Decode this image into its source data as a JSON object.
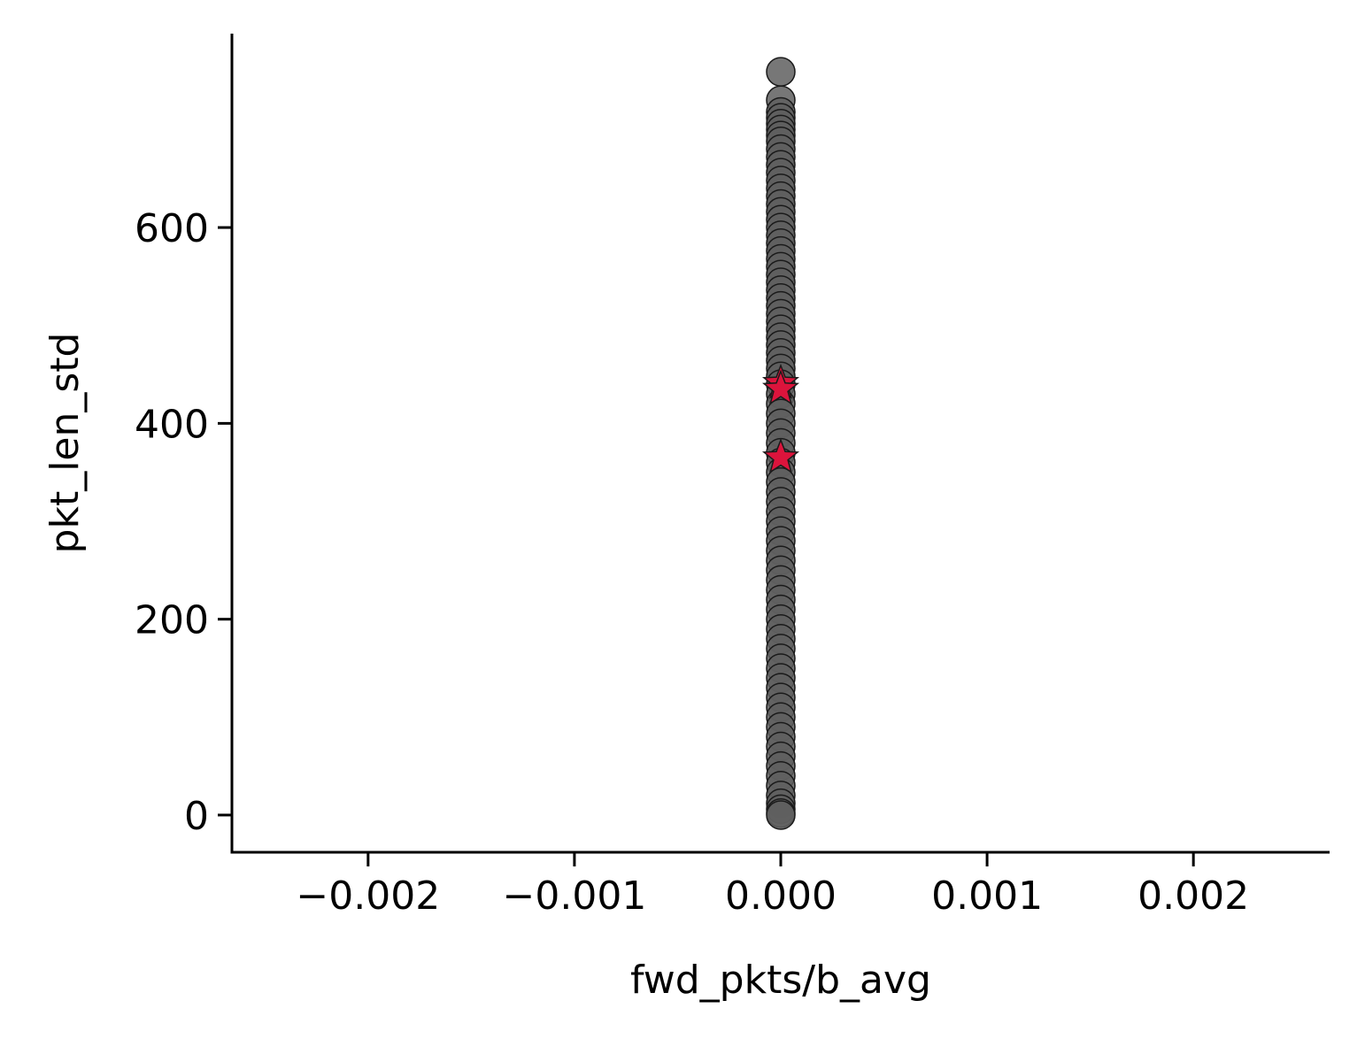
{
  "chart_data": {
    "type": "scatter",
    "title": "",
    "xlabel": "fwd_pkts/b_avg",
    "ylabel": "pkt_len_std",
    "xlim": [
      -0.00266,
      0.00266
    ],
    "ylim": [
      -38,
      798
    ],
    "xticks": [
      {
        "value": -0.002,
        "label": "−0.002"
      },
      {
        "value": -0.001,
        "label": "−0.001"
      },
      {
        "value": 0.0,
        "label": "0.000"
      },
      {
        "value": 0.001,
        "label": "0.001"
      },
      {
        "value": 0.002,
        "label": "0.002"
      }
    ],
    "yticks": [
      {
        "value": 0,
        "label": "0"
      },
      {
        "value": 200,
        "label": "200"
      },
      {
        "value": 400,
        "label": "400"
      },
      {
        "value": 600,
        "label": "600"
      }
    ],
    "grid": false,
    "series": [
      {
        "marker": "circle",
        "color": "#5f5f5f",
        "edgecolor": "#1a1a1a",
        "points": [
          {
            "x": 0,
            "y": 759
          },
          {
            "x": 0,
            "y": 730
          },
          {
            "x": 0,
            "y": 718
          },
          {
            "x": 0,
            "y": 712
          },
          {
            "x": 0,
            "y": 706
          },
          {
            "x": 0,
            "y": 700
          },
          {
            "x": 0,
            "y": 694
          },
          {
            "x": 0,
            "y": 688
          },
          {
            "x": 0,
            "y": 680
          },
          {
            "x": 0,
            "y": 672
          },
          {
            "x": 0,
            "y": 664
          },
          {
            "x": 0,
            "y": 656
          },
          {
            "x": 0,
            "y": 648
          },
          {
            "x": 0,
            "y": 640
          },
          {
            "x": 0,
            "y": 632
          },
          {
            "x": 0,
            "y": 624
          },
          {
            "x": 0,
            "y": 616
          },
          {
            "x": 0,
            "y": 608
          },
          {
            "x": 0,
            "y": 600
          },
          {
            "x": 0,
            "y": 592
          },
          {
            "x": 0,
            "y": 584
          },
          {
            "x": 0,
            "y": 576
          },
          {
            "x": 0,
            "y": 568
          },
          {
            "x": 0,
            "y": 560
          },
          {
            "x": 0,
            "y": 552
          },
          {
            "x": 0,
            "y": 544
          },
          {
            "x": 0,
            "y": 536
          },
          {
            "x": 0,
            "y": 528
          },
          {
            "x": 0,
            "y": 520
          },
          {
            "x": 0,
            "y": 512
          },
          {
            "x": 0,
            "y": 504
          },
          {
            "x": 0,
            "y": 496
          },
          {
            "x": 0,
            "y": 488
          },
          {
            "x": 0,
            "y": 480
          },
          {
            "x": 0,
            "y": 472
          },
          {
            "x": 0,
            "y": 464
          },
          {
            "x": 0,
            "y": 456
          },
          {
            "x": 0,
            "y": 448
          },
          {
            "x": 0,
            "y": 440
          },
          {
            "x": 0,
            "y": 430
          },
          {
            "x": 0,
            "y": 420
          },
          {
            "x": 0,
            "y": 410
          },
          {
            "x": 0,
            "y": 400
          },
          {
            "x": 0,
            "y": 390
          },
          {
            "x": 0,
            "y": 380
          },
          {
            "x": 0,
            "y": 370
          },
          {
            "x": 0,
            "y": 360
          },
          {
            "x": 0,
            "y": 350
          },
          {
            "x": 0,
            "y": 340
          },
          {
            "x": 0,
            "y": 330
          },
          {
            "x": 0,
            "y": 320
          },
          {
            "x": 0,
            "y": 310
          },
          {
            "x": 0,
            "y": 300
          },
          {
            "x": 0,
            "y": 290
          },
          {
            "x": 0,
            "y": 280
          },
          {
            "x": 0,
            "y": 270
          },
          {
            "x": 0,
            "y": 260
          },
          {
            "x": 0,
            "y": 250
          },
          {
            "x": 0,
            "y": 240
          },
          {
            "x": 0,
            "y": 230
          },
          {
            "x": 0,
            "y": 220
          },
          {
            "x": 0,
            "y": 210
          },
          {
            "x": 0,
            "y": 200
          },
          {
            "x": 0,
            "y": 190
          },
          {
            "x": 0,
            "y": 180
          },
          {
            "x": 0,
            "y": 170
          },
          {
            "x": 0,
            "y": 160
          },
          {
            "x": 0,
            "y": 150
          },
          {
            "x": 0,
            "y": 140
          },
          {
            "x": 0,
            "y": 130
          },
          {
            "x": 0,
            "y": 120
          },
          {
            "x": 0,
            "y": 110
          },
          {
            "x": 0,
            "y": 100
          },
          {
            "x": 0,
            "y": 90
          },
          {
            "x": 0,
            "y": 80
          },
          {
            "x": 0,
            "y": 70
          },
          {
            "x": 0,
            "y": 60
          },
          {
            "x": 0,
            "y": 50
          },
          {
            "x": 0,
            "y": 40
          },
          {
            "x": 0,
            "y": 30
          },
          {
            "x": 0,
            "y": 20
          },
          {
            "x": 0,
            "y": 12
          },
          {
            "x": 0,
            "y": 6
          },
          {
            "x": 0,
            "y": 2
          },
          {
            "x": 0,
            "y": 0
          }
        ]
      },
      {
        "marker": "star",
        "color": "#dc143c",
        "edgecolor": "#1a1a1a",
        "points": [
          {
            "x": 0,
            "y": 441
          },
          {
            "x": 0,
            "y": 435
          },
          {
            "x": 0,
            "y": 365
          }
        ]
      }
    ]
  }
}
